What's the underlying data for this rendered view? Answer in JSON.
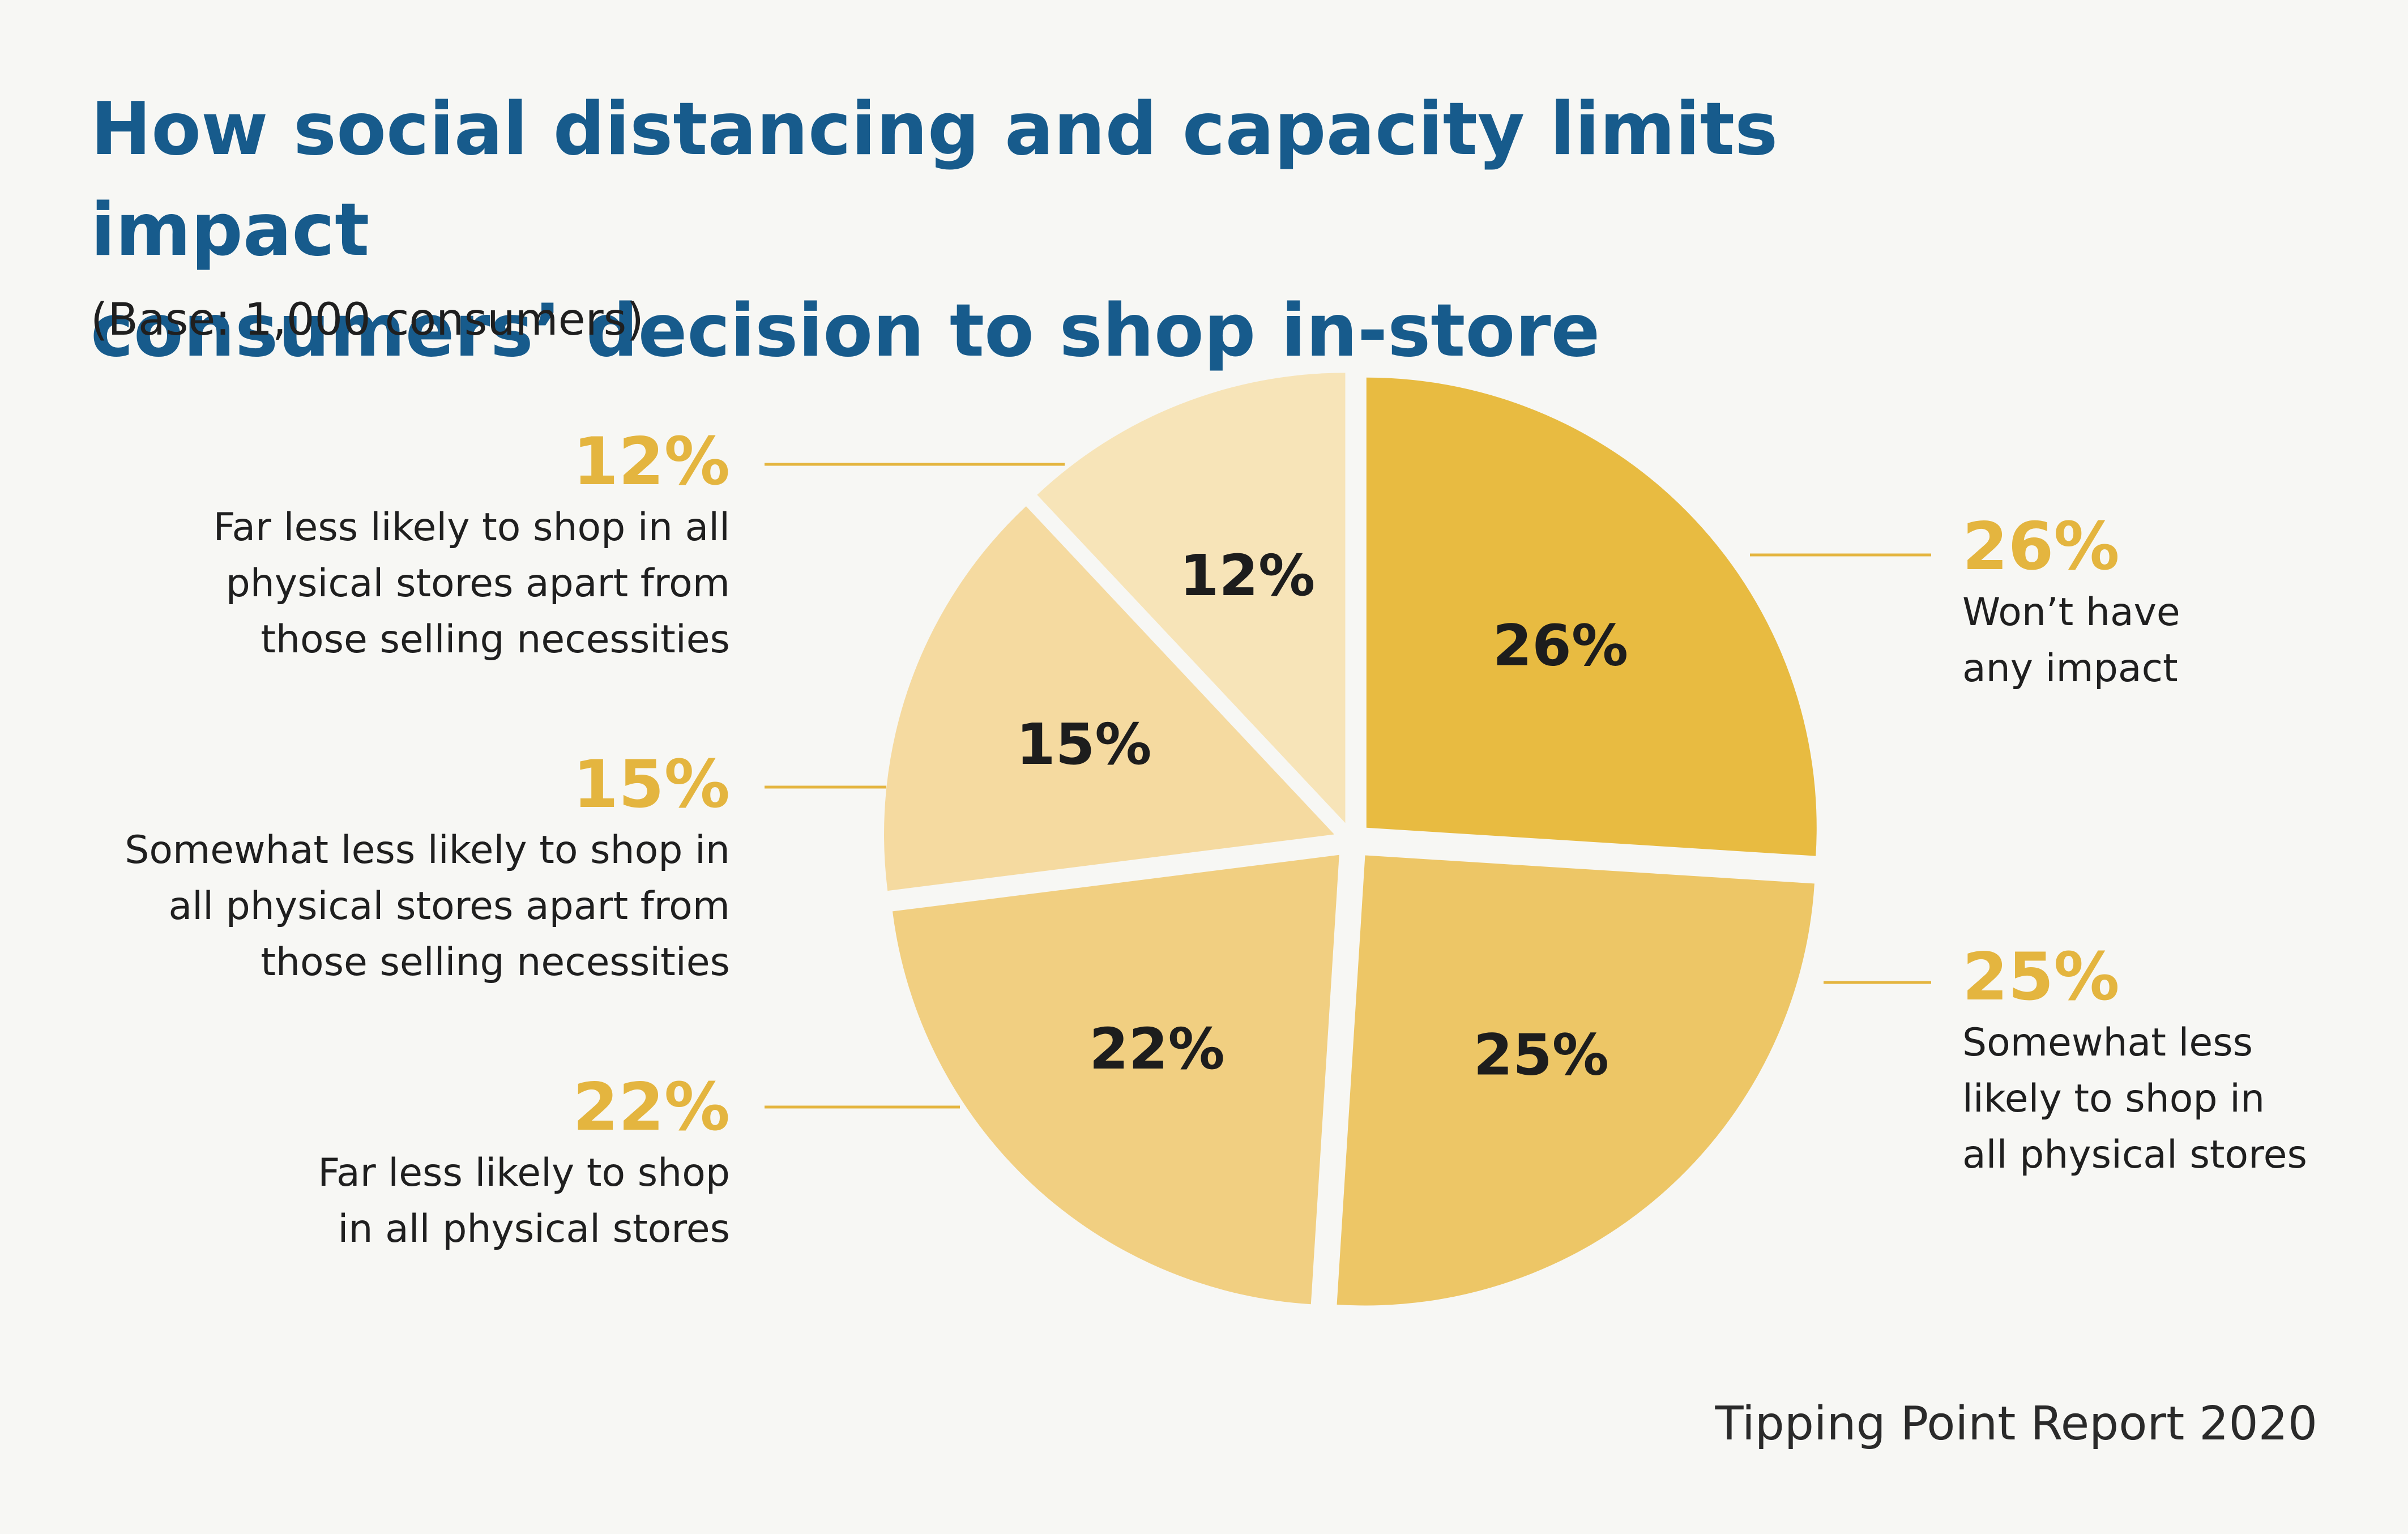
{
  "title_lines": [
    "How social distancing and capacity limits impact",
    "consumers’ decision to shop in-store"
  ],
  "subtitle": "(Base: 1,000 consumers)",
  "source": "Tipping Point Report 2020",
  "colors": {
    "title": "#175b8c",
    "callout_percent": "#e4b53f",
    "leader_line": "#e4b53f",
    "background": "#f7f7f4"
  },
  "chart_data": {
    "type": "pie",
    "slices": [
      {
        "value": 26,
        "label": "26%",
        "callout_pct": "26%",
        "desc_lines": [
          "Won’t have",
          "any impact"
        ],
        "color": "#e8bb41"
      },
      {
        "value": 25,
        "label": "25%",
        "callout_pct": "25%",
        "desc_lines": [
          "Somewhat less",
          "likely to shop in",
          "all physical stores"
        ],
        "color": "#edc666"
      },
      {
        "value": 22,
        "label": "22%",
        "callout_pct": "22%",
        "desc_lines": [
          "Far less likely to shop",
          "in all physical stores"
        ],
        "color": "#f1cf81"
      },
      {
        "value": 15,
        "label": "15%",
        "callout_pct": "15%",
        "desc_lines": [
          "Somewhat less likely to shop in",
          "all physical stores apart from",
          "those selling necessities"
        ],
        "color": "#f5daa0"
      },
      {
        "value": 12,
        "label": "12%",
        "callout_pct": "12%",
        "desc_lines": [
          "Far less likely to shop in all",
          "physical stores apart from",
          "those selling necessities"
        ],
        "color": "#f7e4b8"
      }
    ]
  }
}
